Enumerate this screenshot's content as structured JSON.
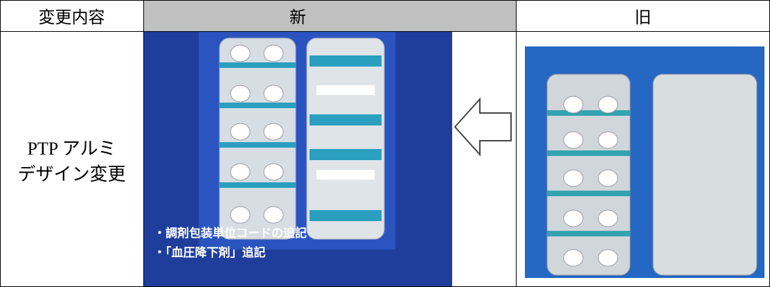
{
  "table": {
    "header": [
      "変更内容",
      "新",
      "旧"
    ],
    "row_label": [
      "PTP アルミ",
      "デザイン変更"
    ],
    "new_notes": [
      "・調剤包装単位コードの追記",
      "・「血圧降下剤」追記"
    ]
  }
}
